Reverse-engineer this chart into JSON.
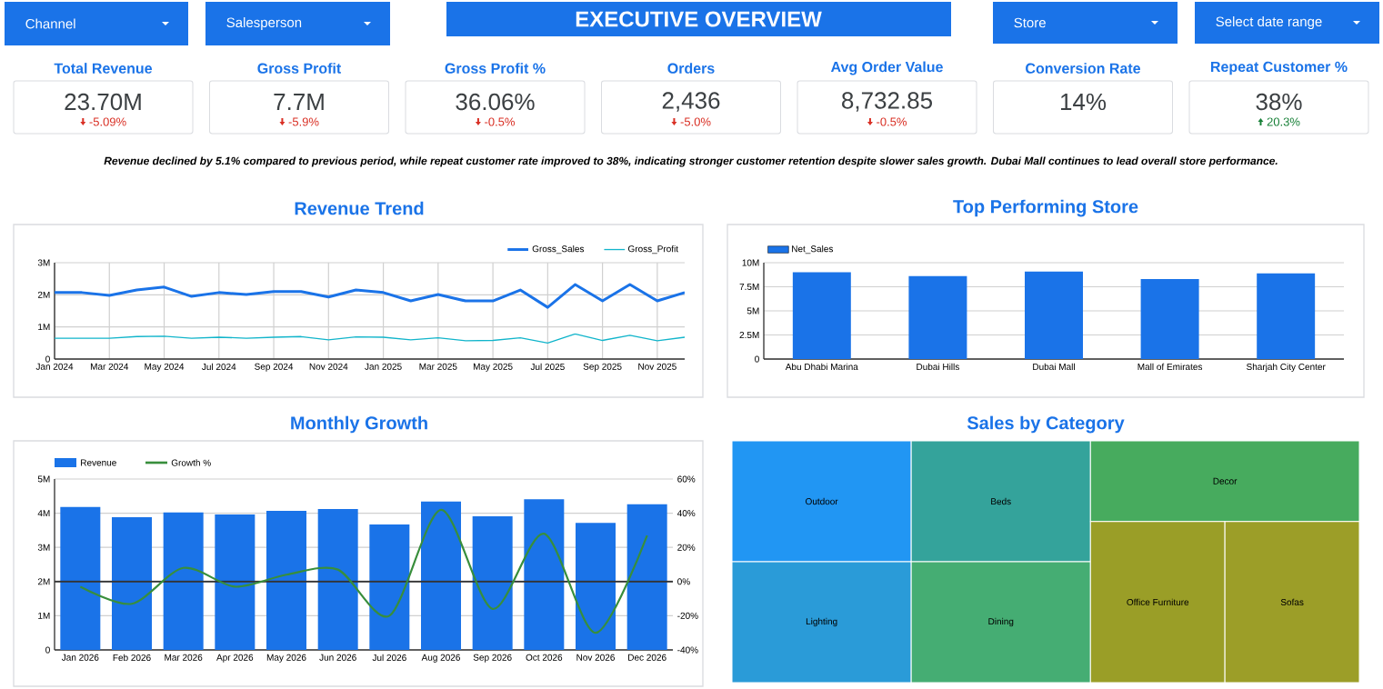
{
  "chart_data": [
    {
      "type": "other",
      "title": "EXECUTIVE OVERVIEW",
      "annotations": [
        "Channel",
        "Salesperson",
        "Store",
        "Select date range",
        "Revenue declined by 5.1% compared to previous period, while repeat customer rate improved to 38%, indicating stronger customer retention despite slower sales growth. Dubai Mall continues to lead overall store performance."
      ]
    },
    {
      "type": "other",
      "categories": [
        "Total Revenue",
        "Gross Profit",
        "Gross Profit %",
        "Orders",
        "Avg Order Value",
        "Conversion Rate",
        "Repeat Customer %"
      ],
      "value_labels": [
        "23.70M",
        "7.7M",
        "36.06%",
        "2,436",
        "8,732.85",
        "14%",
        "38%"
      ],
      "annotations": [
        {
          "text": "-5.09%",
          "x": "Total Revenue"
        },
        {
          "text": "-5.9%",
          "x": "Gross Profit"
        },
        {
          "text": "-0.5%",
          "x": "Gross Profit %"
        },
        {
          "text": "-5.0%",
          "x": "Orders"
        },
        {
          "text": "-0.5%",
          "x": "Avg Order Value"
        },
        {
          "text": "20.3%",
          "x": "Repeat Customer %"
        }
      ],
      "colors": [
        "#d93025",
        "#d93025",
        "#d93025",
        "#d93025",
        "#d93025",
        "#188038"
      ]
    },
    {
      "type": "line",
      "title": "Revenue Trend",
      "x": [
        "2024-01",
        "2024-02",
        "2024-03",
        "2024-04",
        "2024-05",
        "2024-06",
        "2024-07",
        "2024-08",
        "2024-09",
        "2024-10",
        "2024-11",
        "2024-12",
        "2025-01",
        "2025-02",
        "2025-03",
        "2025-04",
        "2025-05",
        "2025-06",
        "2025-07",
        "2025-08",
        "2025-09",
        "2025-10",
        "2025-11",
        "2025-12"
      ],
      "series": [
        {
          "name": "Gross_Sales",
          "color": "#1a73e8",
          "values": [
            2070000,
            2070000,
            1980000,
            2150000,
            2240000,
            1950000,
            2070000,
            2010000,
            2100000,
            2100000,
            1930000,
            2150000,
            2070000,
            1810000,
            2010000,
            1810000,
            1810000,
            2150000,
            1610000,
            2320000,
            1810000,
            2320000,
            1810000,
            2070000
          ]
        },
        {
          "name": "Gross_Profit",
          "color": "#12b5cb",
          "values": [
            650000,
            650000,
            650000,
            700000,
            710000,
            650000,
            680000,
            650000,
            680000,
            700000,
            600000,
            690000,
            680000,
            600000,
            660000,
            570000,
            580000,
            660000,
            500000,
            780000,
            580000,
            740000,
            570000,
            680000
          ]
        }
      ],
      "xlim": [
        "2024-01",
        "2025-12"
      ],
      "xticks": [
        {
          "value": "2024-01",
          "label": "Jan 2024"
        },
        {
          "value": "2024-03",
          "label": "Mar 2024"
        },
        {
          "value": "2024-05",
          "label": "May 2024"
        },
        {
          "value": "2024-07",
          "label": "Jul 2024"
        },
        {
          "value": "2024-09",
          "label": "Sep 2024"
        },
        {
          "value": "2024-11",
          "label": "Nov 2024"
        },
        {
          "value": "2025-01",
          "label": "Jan 2025"
        },
        {
          "value": "2025-03",
          "label": "Mar 2025"
        },
        {
          "value": "2025-05",
          "label": "May 2025"
        },
        {
          "value": "2025-07",
          "label": "Jul 2025"
        },
        {
          "value": "2025-09",
          "label": "Sep 2025"
        },
        {
          "value": "2025-11",
          "label": "Nov 2025"
        }
      ],
      "ylim": [
        0,
        3000000
      ],
      "yticks": [
        0,
        {
          "value": 1000000,
          "label": "1M"
        },
        {
          "value": 2000000,
          "label": "2M"
        },
        {
          "value": 3000000,
          "label": "3M"
        }
      ],
      "grid": true,
      "legend": "top right"
    },
    {
      "type": "bar",
      "title": "Top Performing Store",
      "categories": [
        "Abu Dhabi Marina",
        "Dubai Hills",
        "Dubai Mall",
        "Mall of Emirates",
        "Sharjah City Center"
      ],
      "series": [
        {
          "name": "Net_Sales",
          "color": "#1a73e8",
          "values": [
            9000000,
            8600000,
            9100000,
            8300000,
            8900000
          ]
        }
      ],
      "ylim": [
        0,
        10000000
      ],
      "yticks": [
        0,
        {
          "value": 2500000,
          "label": "2.5M"
        },
        {
          "value": 5000000,
          "label": "5M"
        },
        {
          "value": 7500000,
          "label": "7.5M"
        },
        {
          "value": 10000000,
          "label": "10M"
        }
      ],
      "grid": "y",
      "legend": "top left"
    },
    {
      "type": "bar",
      "title": "Monthly Growth",
      "categories": [
        "Jan 2026",
        "Feb 2026",
        "Mar 2026",
        "Apr 2026",
        "May 2026",
        "Jun 2026",
        "Jul 2026",
        "Aug 2026",
        "Sep 2026",
        "Oct 2026",
        "Nov 2026",
        "Dec 2026"
      ],
      "series": [
        {
          "name": "Revenue",
          "color": "#1a73e8",
          "values": [
            4180000,
            3880000,
            4020000,
            3960000,
            4070000,
            4120000,
            3670000,
            4340000,
            3910000,
            4410000,
            3720000,
            4260000
          ]
        },
        {
          "name": "Growth %",
          "type": "line",
          "axis": "y2",
          "color": "#388e3c",
          "values": [
            -3,
            -13,
            8,
            -3,
            4,
            7,
            -20,
            42,
            -16,
            28,
            -30,
            27
          ]
        }
      ],
      "ylim": [
        0,
        5000000
      ],
      "yticks": [
        0,
        {
          "value": 1000000,
          "label": "1M"
        },
        {
          "value": 2000000,
          "label": "2M"
        },
        {
          "value": 3000000,
          "label": "3M"
        },
        {
          "value": 4000000,
          "label": "4M"
        },
        {
          "value": 5000000,
          "label": "5M"
        }
      ],
      "y2lim": [
        -40,
        60
      ],
      "y2ticks": [
        {
          "value": -40,
          "label": "-40%"
        },
        {
          "value": -20,
          "label": "-20%"
        },
        {
          "value": 0,
          "label": "0%"
        },
        {
          "value": 20,
          "label": "20%"
        },
        {
          "value": 40,
          "label": "40%"
        },
        {
          "value": 60,
          "label": "60%"
        }
      ],
      "ref_lines": [
        {
          "axis": "y2",
          "value": 0,
          "color": "#333333"
        }
      ],
      "grid": "y",
      "legend": "top left"
    },
    {
      "type": "other",
      "title": "Sales by Category",
      "categories": [
        "Outdoor",
        "Lighting",
        "Beds",
        "Dining",
        "Decor",
        "Office Furniture",
        "Sofas"
      ],
      "colors": [
        "#2196f3",
        "#2a9bd8",
        "#34a39b",
        "#45ad73",
        "#47ab5e",
        "#9a9e27",
        "#9c9e28"
      ]
    }
  ]
}
